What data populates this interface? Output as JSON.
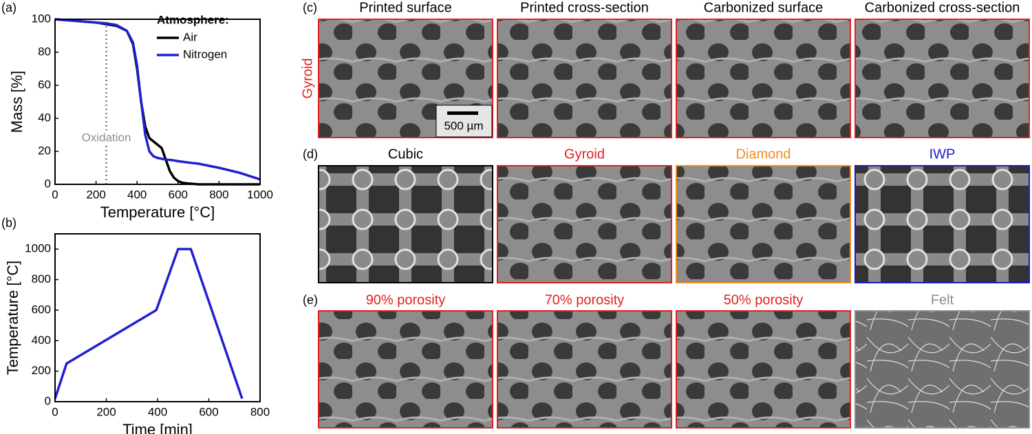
{
  "chart_data": [
    {
      "type": "line",
      "panel_label": "(a)",
      "xlabel": "Temperature [°C]",
      "ylabel": "Mass [%]",
      "xlim": [
        0,
        1000
      ],
      "ylim": [
        0,
        100
      ],
      "xticks": [
        0,
        200,
        400,
        600,
        800,
        1000
      ],
      "yticks": [
        0,
        20,
        40,
        60,
        80,
        100
      ],
      "legend_title": "Atmosphere:",
      "legend": "upper right",
      "annotation": "Oxidation",
      "annotation_x": 250,
      "x": [
        0,
        50,
        100,
        150,
        200,
        250,
        300,
        350,
        380,
        400,
        420,
        440,
        460,
        480,
        500,
        520,
        540,
        560,
        580,
        600,
        620,
        650,
        700,
        800,
        900,
        1000
      ],
      "series": [
        {
          "name": "Air",
          "color": "#000000",
          "values": [
            100,
            99.5,
            99,
            98.5,
            98,
            97,
            96,
            93,
            85,
            70,
            50,
            35,
            28,
            26,
            24,
            22,
            15,
            8,
            4,
            2,
            1,
            0.5,
            0,
            0,
            0,
            0
          ]
        },
        {
          "name": "Nitrogen",
          "color": "#1f1fd0",
          "values": [
            100,
            99.5,
            99,
            98.5,
            98,
            97.5,
            96.5,
            93,
            86,
            72,
            50,
            30,
            20,
            17,
            16,
            15.5,
            15,
            14.8,
            14.5,
            14,
            13.7,
            13.2,
            12.5,
            10,
            7,
            3
          ]
        }
      ]
    },
    {
      "type": "line",
      "panel_label": "(b)",
      "xlabel": "Time [min]",
      "ylabel": "Temperature [°C]",
      "xlim": [
        0,
        800
      ],
      "ylim": [
        0,
        1100
      ],
      "xticks": [
        0,
        200,
        400,
        600,
        800
      ],
      "yticks": [
        0,
        200,
        400,
        600,
        800,
        1000
      ],
      "x": [
        0,
        45,
        395,
        480,
        530,
        730
      ],
      "series": [
        {
          "color": "#1f1fd0",
          "values": [
            20,
            250,
            600,
            1000,
            1000,
            20
          ]
        }
      ]
    }
  ],
  "panels": [
    {
      "label": "(c)",
      "row_label": "Gyroid",
      "row_label_color": "#e02020",
      "scale_bar": "500 µm",
      "images": [
        {
          "title": "Printed surface",
          "color": "#000000",
          "frame_color": "#e02020"
        },
        {
          "title": "Printed cross-section",
          "color": "#000000",
          "frame_color": "#e02020"
        },
        {
          "title": "Carbonized surface",
          "color": "#000000",
          "frame_color": "#e02020"
        },
        {
          "title": "Carbonized cross-section",
          "color": "#000000",
          "frame_color": "#e02020"
        }
      ]
    },
    {
      "label": "(d)",
      "images": [
        {
          "title": "Cubic",
          "color": "#000000",
          "frame_color": "#000000"
        },
        {
          "title": "Gyroid",
          "color": "#e02020",
          "frame_color": "#e02020"
        },
        {
          "title": "Diamond",
          "color": "#f08c20",
          "frame_color": "#f08c20"
        },
        {
          "title": "IWP",
          "color": "#1a1acc",
          "frame_color": "#1a1acc"
        }
      ]
    },
    {
      "label": "(e)",
      "images": [
        {
          "title": "90% porosity",
          "color": "#e02020",
          "frame_color": "#e02020"
        },
        {
          "title": "70% porosity",
          "color": "#e02020",
          "frame_color": "#e02020"
        },
        {
          "title": "50% porosity",
          "color": "#e02020",
          "frame_color": "#e02020"
        },
        {
          "title": "Felt",
          "color": "#8c8c8c",
          "frame_color": "#8c8c8c"
        }
      ]
    }
  ]
}
